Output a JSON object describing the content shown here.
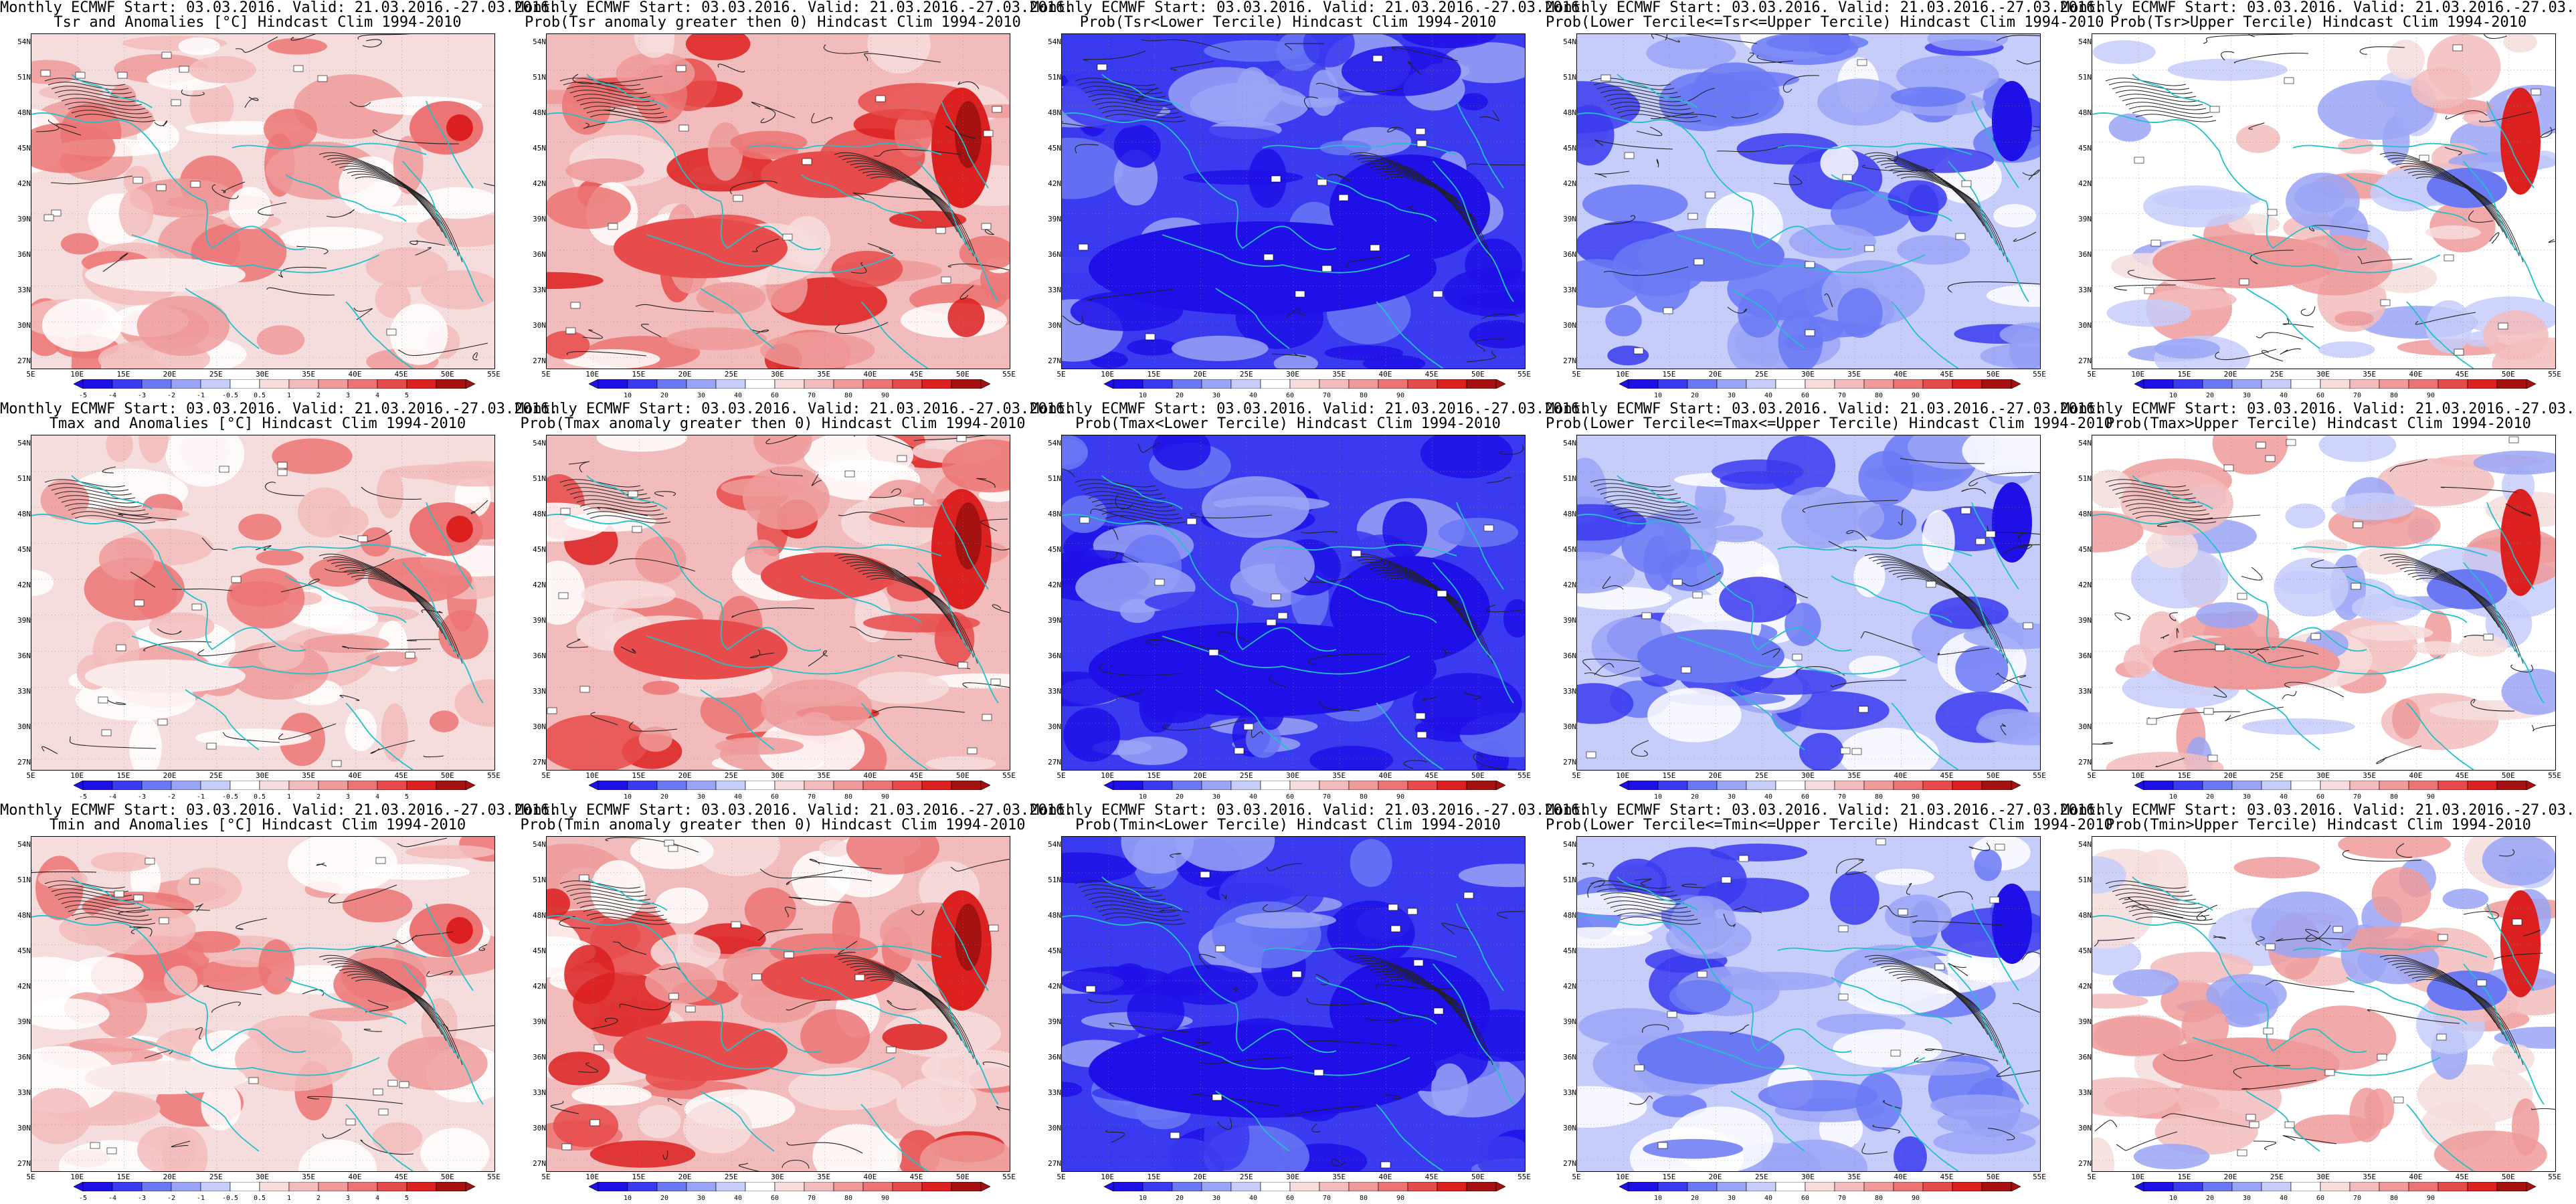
{
  "title_line1": "Monthly ECMWF Start: 03.03.2016. Valid: 21.03.2016.-27.03.2016.",
  "colors": {
    "red_scale": [
      "#f6dddd",
      "#f3bcbc",
      "#ef9a9a",
      "#ec7474",
      "#e84b4b",
      "#dc1f1f",
      "#a51010"
    ],
    "blue_scale": [
      "#1e10e6",
      "#3a3af0",
      "#6a78f4",
      "#9aa4f6",
      "#c6cdfa",
      "#ffffff"
    ],
    "coast": "#22c0c8",
    "contour": "#222222"
  },
  "lat_ticks": [
    "54N",
    "51N",
    "48N",
    "45N",
    "42N",
    "39N",
    "36N",
    "33N",
    "30N",
    "27N"
  ],
  "lon_ticks": [
    "5E",
    "10E",
    "15E",
    "20E",
    "25E",
    "30E",
    "35E",
    "40E",
    "45E",
    "50E",
    "55E"
  ],
  "scale_anom": [
    "-5",
    "-4",
    "-3",
    "-2",
    "-1",
    "-0.5",
    "0.5",
    "1",
    "2",
    "3",
    "4",
    "5"
  ],
  "scale_prob": [
    "10",
    "20",
    "30",
    "40",
    "60",
    "70",
    "80",
    "90"
  ],
  "panels": [
    {
      "title2": "Tsr and Anomalies [°C] Hindcast Clim 1994-2010",
      "type": "anom",
      "scale": "anom"
    },
    {
      "title2": "Prob(Tsr anomaly greater then 0) Hindcast Clim 1994-2010",
      "type": "probhi",
      "scale": "prob"
    },
    {
      "title2": "Prob(Tsr<Lower Tercile) Hindcast Clim 1994-2010",
      "type": "lower",
      "scale": "prob"
    },
    {
      "title2": "Prob(Lower Tercile<=Tsr<=Upper Tercile) Hindcast Clim 1994-2010",
      "type": "middle",
      "scale": "prob"
    },
    {
      "title2": "Prob(Tsr>Upper Tercile) Hindcast Clim 1994-2010",
      "type": "upper",
      "scale": "prob"
    },
    {
      "title2": "Tmax and Anomalies [°C] Hindcast Clim 1994-2010",
      "type": "anom",
      "scale": "anom"
    },
    {
      "title2": "Prob(Tmax anomaly greater then 0) Hindcast Clim 1994-2010",
      "type": "probhi",
      "scale": "prob"
    },
    {
      "title2": "Prob(Tmax<Lower Tercile) Hindcast Clim 1994-2010",
      "type": "lower",
      "scale": "prob"
    },
    {
      "title2": "Prob(Lower Tercile<=Tmax<=Upper Tercile) Hindcast Clim 1994-2010",
      "type": "middle",
      "scale": "prob"
    },
    {
      "title2": "Prob(Tmax>Upper Tercile) Hindcast Clim 1994-2010",
      "type": "upper",
      "scale": "prob"
    },
    {
      "title2": "Tmin and Anomalies [°C] Hindcast Clim 1994-2010",
      "type": "anom",
      "scale": "anom"
    },
    {
      "title2": "Prob(Tmin anomaly greater then 0) Hindcast Clim 1994-2010",
      "type": "probhi",
      "scale": "prob"
    },
    {
      "title2": "Prob(Tmin<Lower Tercile) Hindcast Clim 1994-2010",
      "type": "lower",
      "scale": "prob"
    },
    {
      "title2": "Prob(Lower Tercile<=Tmin<=Upper Tercile) Hindcast Clim 1994-2010",
      "type": "middle",
      "scale": "prob"
    },
    {
      "title2": "Prob(Tmin>Upper Tercile) Hindcast Clim 1994-2010",
      "type": "upper",
      "scale": "prob"
    }
  ]
}
